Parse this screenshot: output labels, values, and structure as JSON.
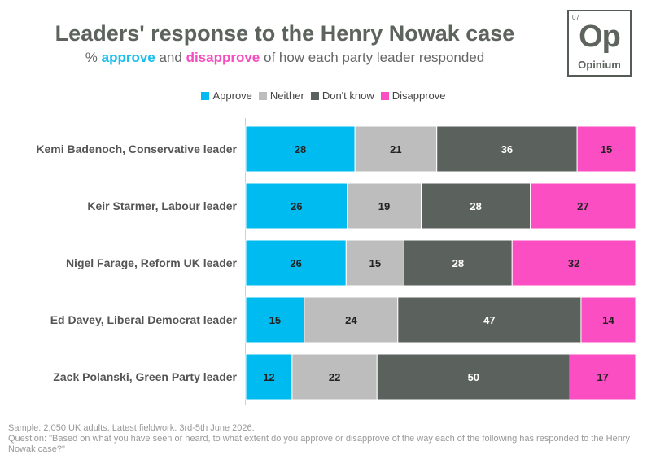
{
  "header": {
    "title": "Leaders' response to the Henry Nowak case",
    "subtitle_prefix": "% ",
    "subtitle_approve": "approve",
    "subtitle_mid": " and ",
    "subtitle_disapprove": "disapprove",
    "subtitle_suffix": " of how each party leader responded"
  },
  "logo": {
    "number": "07",
    "symbol": "Op",
    "name": "Opinium"
  },
  "chart_data": {
    "type": "bar",
    "orientation": "horizontal",
    "stacked": true,
    "categories": [
      "Kemi Badenoch, Conservative leader",
      "Keir Starmer, Labour leader",
      "Nigel Farage, Reform UK leader",
      "Ed Davey, Liberal Democrat leader",
      "Zack Polanski, Green Party leader"
    ],
    "series": [
      {
        "name": "Approve",
        "color": "#00bbf0",
        "values": [
          28,
          26,
          26,
          15,
          12
        ]
      },
      {
        "name": "Neither",
        "color": "#bdbdbd",
        "values": [
          21,
          19,
          15,
          24,
          22
        ]
      },
      {
        "name": "Don't know",
        "color": "#5b615c",
        "values": [
          36,
          28,
          28,
          47,
          50
        ]
      },
      {
        "name": "Disapprove",
        "color": "#fc4ec3",
        "values": [
          15,
          27,
          32,
          14,
          17
        ]
      }
    ],
    "legend_position": "top-center",
    "data_labels": true,
    "grid": false
  },
  "footer": {
    "sample": "Sample: 2,050 UK adults. Latest fieldwork: 3rd-5th June 2026.",
    "question": "Question: \"Based on what you have seen or heard, to what extent do you approve or disapprove of the way each of the following has responded to the Henry Nowak case?\""
  }
}
